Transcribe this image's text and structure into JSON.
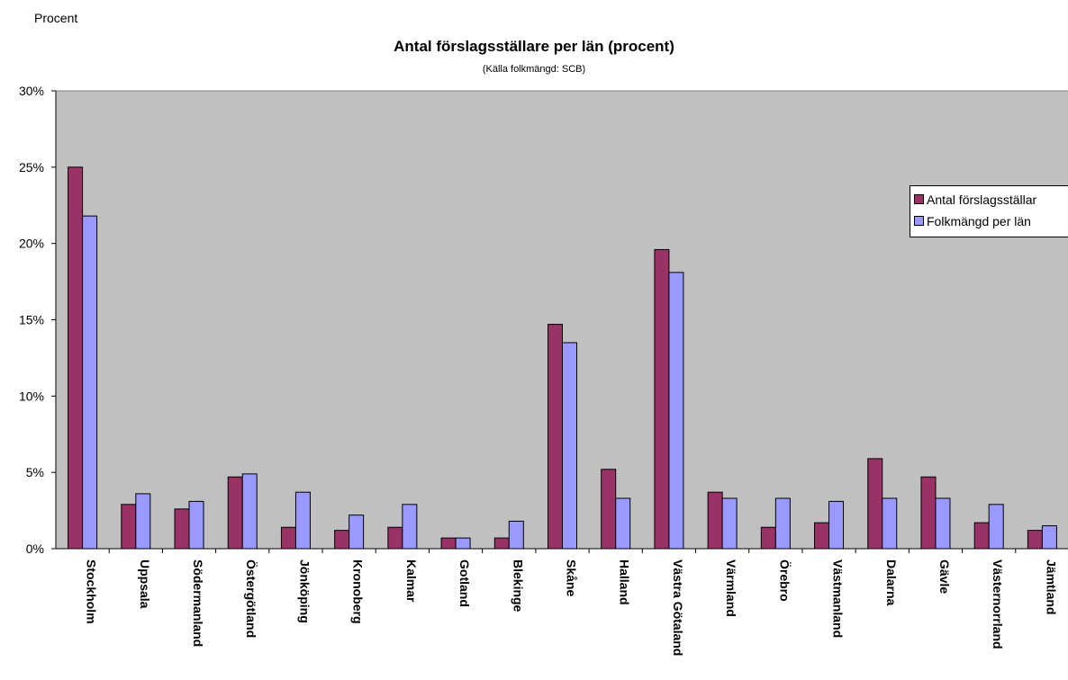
{
  "chart_data": {
    "type": "bar",
    "unit_label": "Procent",
    "title": "Antal förslagsställare per län (procent)",
    "subtitle": "(Källa folkmängd: SCB)",
    "categories": [
      "Stockholm",
      "Uppsala",
      "Södermanland",
      "Östergötland",
      "Jönköping",
      "Kronoberg",
      "Kalmar",
      "Gotland",
      "Blekinge",
      "Skåne",
      "Halland",
      "Västra Götaland",
      "Värmland",
      "Örebro",
      "Västmanland",
      "Dalarna",
      "Gävle",
      "Västernorrland",
      "Jämtland"
    ],
    "series": [
      {
        "name": "Antal förslagsställare",
        "legend_text": "Antal förslagsställar",
        "color": "#993366",
        "values": [
          25.0,
          2.9,
          2.6,
          4.7,
          1.4,
          1.2,
          1.4,
          0.7,
          0.7,
          14.7,
          5.2,
          19.6,
          3.7,
          1.4,
          1.7,
          5.9,
          4.7,
          1.7,
          1.2
        ]
      },
      {
        "name": "Folkmängd per län",
        "legend_text": "Folkmängd per län",
        "color": "#9999FF",
        "values": [
          21.8,
          3.6,
          3.1,
          4.9,
          3.7,
          2.2,
          2.9,
          0.7,
          1.8,
          13.5,
          3.3,
          18.1,
          3.3,
          3.3,
          3.1,
          3.3,
          3.3,
          2.9,
          1.5
        ]
      }
    ],
    "ylim": [
      0,
      30
    ],
    "yticks": [
      0,
      5,
      10,
      15,
      20,
      25,
      30
    ],
    "ytick_labels": [
      "0%",
      "5%",
      "10%",
      "15%",
      "20%",
      "25%",
      "30%"
    ],
    "plot_background": "#C0C0C0",
    "grid": false,
    "legend_position": "right"
  }
}
